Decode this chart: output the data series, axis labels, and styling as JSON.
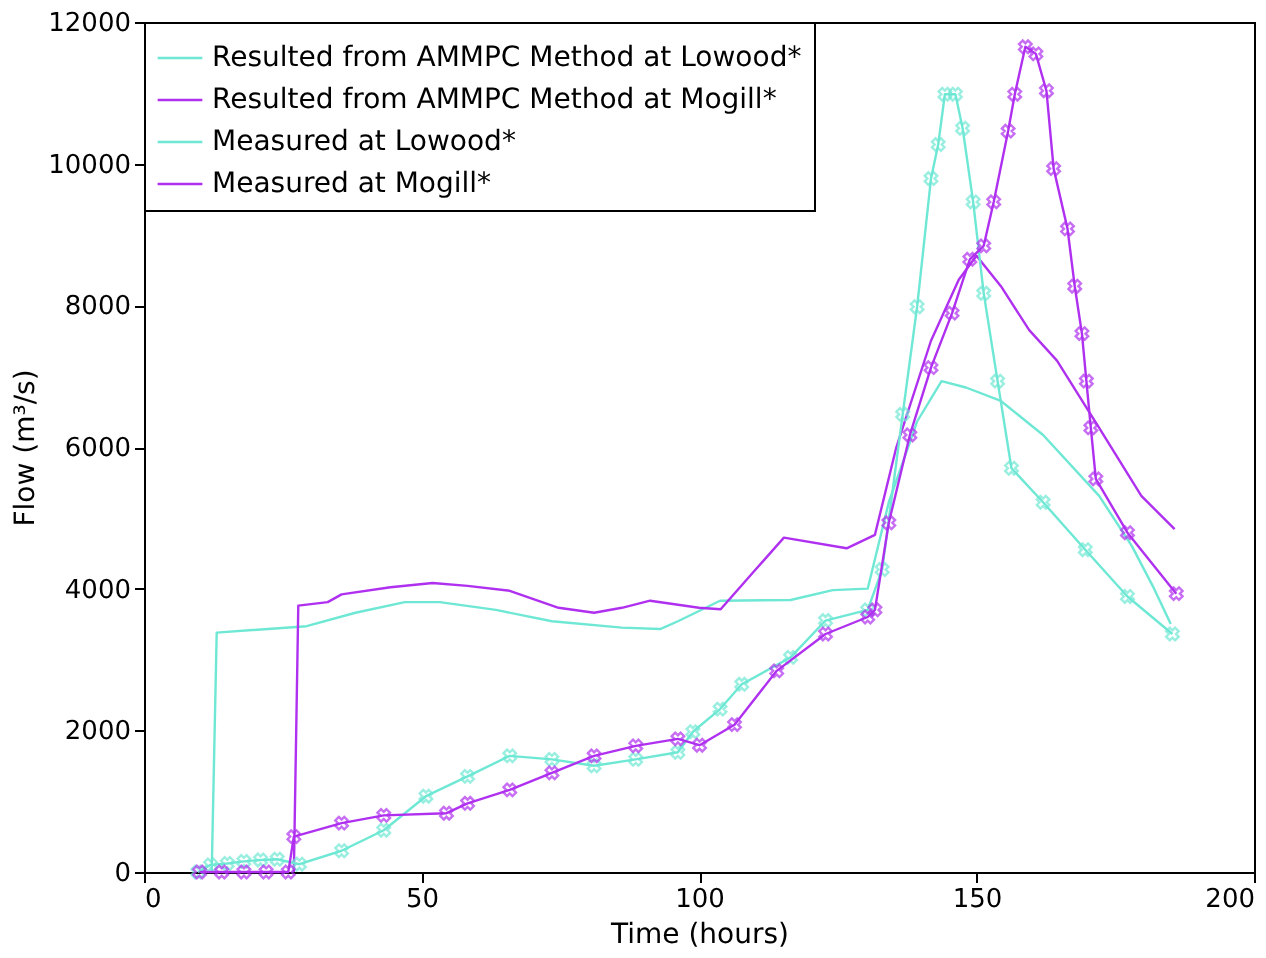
{
  "chart_data": {
    "type": "line",
    "xlabel": "Time (hours)",
    "ylabel": "Flow (m³/s)",
    "xlim": [
      0,
      200
    ],
    "ylim": [
      0,
      12000
    ],
    "xticks": [
      0,
      50,
      100,
      150,
      200
    ],
    "yticks": [
      0,
      2000,
      4000,
      6000,
      8000,
      10000,
      12000
    ],
    "grid": false,
    "legend": "top left",
    "line_style": "solid",
    "series": [
      {
        "name": "Resulted from AMMPC Method at Lowood*",
        "color": "#6ee8d4",
        "marker": "none",
        "x": [
          12.2,
          13.1,
          29.3,
          38.1,
          47,
          53.3,
          63.4,
          73.5,
          86.1,
          93,
          96.2,
          103.8,
          116.5,
          124.1,
          130.4,
          134.2,
          139.3,
          143.7,
          148.1,
          154.4,
          162,
          172.1,
          178,
          182,
          185
        ],
        "values": [
          0,
          3380,
          3470,
          3660,
          3810,
          3810,
          3700,
          3540,
          3450,
          3430,
          3540,
          3830,
          3840,
          3980,
          4000,
          5220,
          6360,
          6930,
          6840,
          6650,
          6170,
          5310,
          4600,
          4000,
          3500
        ]
      },
      {
        "name": "Resulted from AMMPC Method at Mogill*",
        "color": "#b030f0",
        "marker": "none",
        "x": [
          27,
          27.8,
          33.1,
          35.6,
          44.4,
          52,
          58.3,
          65.9,
          74.7,
          81.1,
          86.1,
          91.2,
          100,
          103.9,
          110.2,
          115.3,
          126.6,
          131.7,
          135.5,
          141.8,
          146.8,
          150,
          154.4,
          159.5,
          164.5,
          172.1,
          179.7,
          185.7
        ],
        "values": [
          0,
          3760,
          3810,
          3920,
          4020,
          4080,
          4040,
          3970,
          3730,
          3660,
          3730,
          3830,
          3730,
          3710,
          4270,
          4720,
          4570,
          4760,
          5980,
          7500,
          8360,
          8700,
          8270,
          7650,
          7220,
          6270,
          5310,
          4840
        ]
      },
      {
        "name": "Measured at Lowood*",
        "color": "#6ee8d4",
        "marker": "cross",
        "x": [
          9.7,
          12,
          15,
          18,
          21,
          24,
          28,
          35.6,
          43.2,
          50.8,
          58.3,
          65.9,
          73.5,
          81.1,
          88.6,
          96.2,
          98.9,
          103.8,
          107.7,
          116.5,
          122.8,
          130.4,
          133,
          136.7,
          139.3,
          141.8,
          143.1,
          144.3,
          146.2,
          147.5,
          149.4,
          151.3,
          153.8,
          156.3,
          162,
          169.6,
          177.2,
          185.3
        ],
        "values": [
          0,
          100,
          120,
          150,
          170,
          180,
          110,
          300,
          590,
          1070,
          1350,
          1640,
          1590,
          1500,
          1590,
          1690,
          1980,
          2300,
          2650,
          3030,
          3550,
          3700,
          4270,
          6460,
          7980,
          9790,
          10270,
          10980,
          10980,
          10500,
          9460,
          8170,
          6930,
          5700,
          5220,
          4550,
          3890,
          3360
        ]
      },
      {
        "name": "Measured at Mogill*",
        "color": "#b030f0",
        "marker": "cross",
        "x": [
          10,
          14,
          18,
          22,
          26,
          27,
          35.6,
          43.2,
          54.5,
          58.3,
          65.9,
          73.5,
          81.1,
          88.6,
          96.2,
          100.1,
          106.4,
          114,
          122.8,
          130.4,
          131.7,
          134.2,
          138,
          141.8,
          145.6,
          148.8,
          151.3,
          153.1,
          155.7,
          156.9,
          158.8,
          160.7,
          162.6,
          163.9,
          166.4,
          167.7,
          169,
          169.8,
          170.6,
          171.5,
          177.2,
          186
        ],
        "values": [
          0,
          0,
          0,
          0,
          0,
          500,
          690,
          800,
          830,
          970,
          1160,
          1400,
          1640,
          1780,
          1880,
          1790,
          2080,
          2840,
          3360,
          3600,
          3700,
          4930,
          6170,
          7120,
          7890,
          8650,
          8840,
          9460,
          10460,
          10980,
          11650,
          11550,
          11030,
          9930,
          9080,
          8270,
          7600,
          6930,
          6270,
          5550,
          4790,
          3930
        ]
      }
    ]
  }
}
